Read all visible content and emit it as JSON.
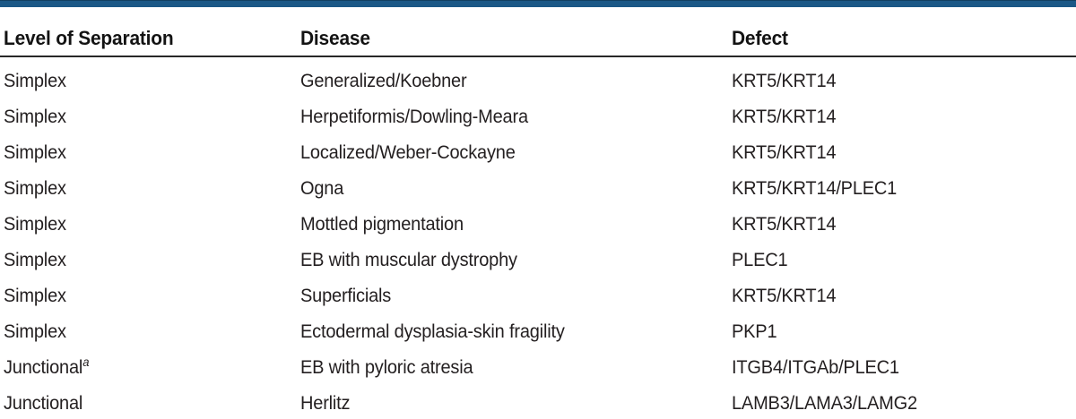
{
  "page": {
    "background_color": "#ffffff",
    "accent_bar_color": "#1B5886",
    "rule_color": "#282828",
    "text_color": "#231f20"
  },
  "table": {
    "columns": [
      {
        "key": "level",
        "label": "Level of Separation"
      },
      {
        "key": "disease",
        "label": "Disease"
      },
      {
        "key": "defect",
        "label": "Defect"
      }
    ],
    "rows": [
      {
        "level": "Simplex",
        "disease": "Generalized/Koebner",
        "defect": "KRT5/KRT14"
      },
      {
        "level": "Simplex",
        "disease": "Herpetiformis/Dowling-Meara",
        "defect": "KRT5/KRT14"
      },
      {
        "level": "Simplex",
        "disease": "Localized/Weber-Cockayne",
        "defect": "KRT5/KRT14"
      },
      {
        "level": "Simplex",
        "disease": "Ogna",
        "defect": "KRT5/KRT14/PLEC1"
      },
      {
        "level": "Simplex",
        "disease": "Mottled pigmentation",
        "defect": "KRT5/KRT14"
      },
      {
        "level": "Simplex",
        "disease": "EB with muscular dystrophy",
        "defect": "PLEC1"
      },
      {
        "level": "Simplex",
        "disease": "Superficials",
        "defect": "KRT5/KRT14"
      },
      {
        "level": "Simplex",
        "disease": "Ectodermal dysplasia-skin fragility",
        "defect": "PKP1"
      },
      {
        "level": "Junctional",
        "level_superscript": "a",
        "disease": "EB with pyloric atresia",
        "defect": "ITGB4/ITGAb/PLEC1"
      },
      {
        "level": "Junctional",
        "disease": "Herlitz",
        "defect": "LAMB3/LAMA3/LAMG2"
      }
    ]
  }
}
